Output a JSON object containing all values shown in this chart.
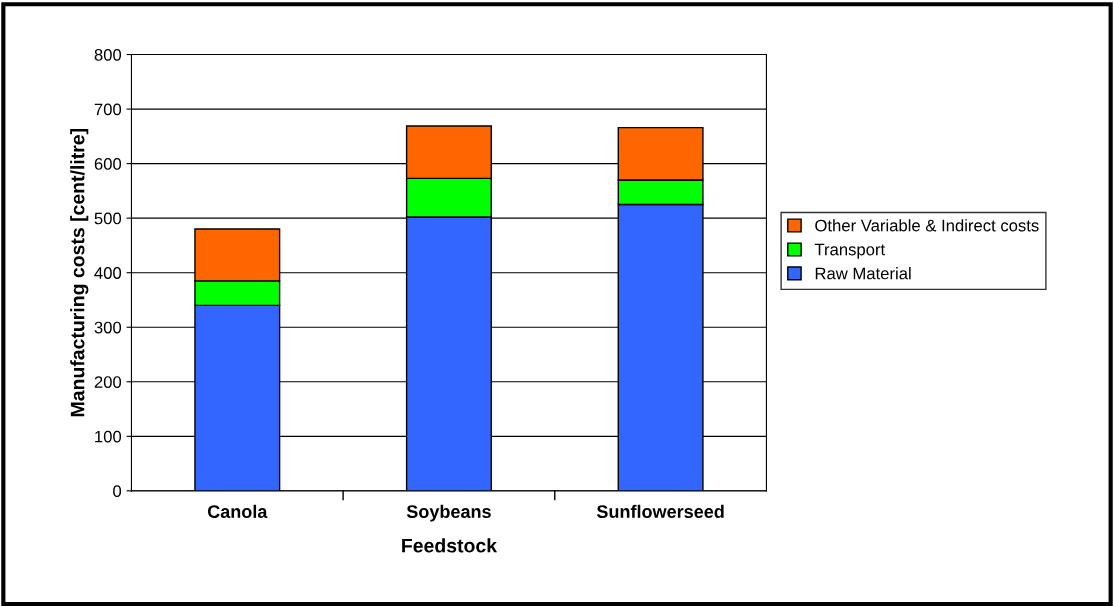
{
  "chart_data": {
    "type": "bar",
    "stacked": true,
    "xlabel": "Feedstock",
    "ylabel": "Manufacturing costs [cent/litre]",
    "categories": [
      "Canola",
      "Soybeans",
      "Sunflowerseed"
    ],
    "series": [
      {
        "name": "Raw Material",
        "color": "#3366ff",
        "values": [
          340,
          502,
          525
        ]
      },
      {
        "name": "Transport",
        "color": "#00ff00",
        "values": [
          45,
          71,
          45
        ]
      },
      {
        "name": "Other Variable & Indirect costs",
        "color": "#ff6600",
        "values": [
          95,
          96,
          96
        ]
      }
    ],
    "ylim": [
      0,
      800
    ],
    "yticks": [
      0,
      100,
      200,
      300,
      400,
      500,
      600,
      700,
      800
    ],
    "grid": "y",
    "legend": "right"
  }
}
